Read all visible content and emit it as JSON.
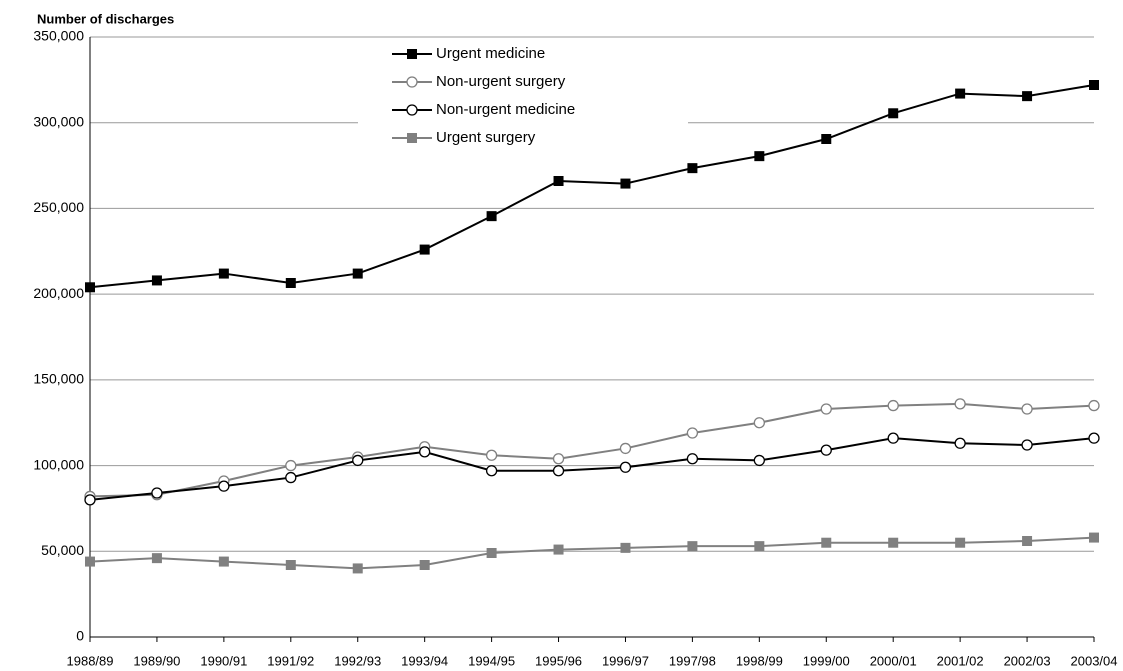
{
  "chart_data": {
    "type": "line",
    "y_axis_title": "Number of discharges",
    "categories": [
      "1988/89",
      "1989/90",
      "1990/91",
      "1991/92",
      "1992/93",
      "1993/94",
      "1994/95",
      "1995/96",
      "1996/97",
      "1997/98",
      "1998/99",
      "1999/00",
      "2000/01",
      "2001/02",
      "2002/03",
      "2003/04"
    ],
    "series": [
      {
        "name": "Urgent medicine",
        "color": "#000000",
        "marker": "square-filled",
        "values": [
          204000,
          208000,
          212000,
          206500,
          212000,
          226000,
          245500,
          266000,
          264500,
          273500,
          280500,
          290500,
          305500,
          317000,
          315500,
          322000
        ]
      },
      {
        "name": "Non-urgent surgery",
        "color": "#808080",
        "marker": "circle-open",
        "values": [
          82000,
          83000,
          91000,
          100000,
          105000,
          111000,
          106000,
          104000,
          110000,
          119000,
          125000,
          133000,
          135000,
          136000,
          133000,
          135000
        ]
      },
      {
        "name": "Non-urgent medicine",
        "color": "#000000",
        "marker": "circle-open",
        "values": [
          80000,
          84000,
          88000,
          93000,
          103000,
          108000,
          97000,
          97000,
          99000,
          104000,
          103000,
          109000,
          116000,
          113000,
          112000,
          116000
        ]
      },
      {
        "name": "Urgent surgery",
        "color": "#808080",
        "marker": "square-filled",
        "values": [
          44000,
          46000,
          44000,
          42000,
          40000,
          42000,
          49000,
          51000,
          52000,
          53000,
          53000,
          55000,
          55000,
          55000,
          56000,
          58000
        ]
      }
    ],
    "ylim": [
      0,
      350000
    ],
    "yticks": [
      0,
      {
        "value": 50000,
        "label": "50,000"
      },
      {
        "value": 100000,
        "label": "100,000"
      },
      {
        "value": 150000,
        "label": "150,000"
      },
      {
        "value": 200000,
        "label": "200,000"
      },
      {
        "value": 250000,
        "label": "250,000"
      },
      {
        "value": 300000,
        "label": "300,000"
      },
      {
        "value": 350000,
        "label": "350,000"
      }
    ],
    "grid": true,
    "legend": "top"
  }
}
